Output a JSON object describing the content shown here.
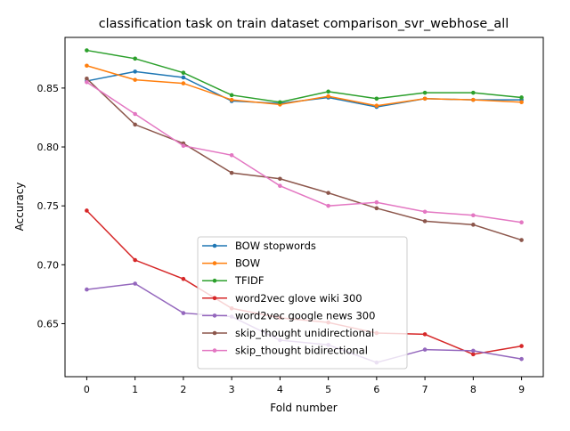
{
  "chart_data": {
    "type": "line",
    "title": "classification task on train dataset comparison_svr_webhose_all",
    "xlabel": "Fold number",
    "ylabel": "Accuracy",
    "x": [
      0,
      1,
      2,
      3,
      4,
      5,
      6,
      7,
      8,
      9
    ],
    "x_ticks": [
      "0",
      "1",
      "2",
      "3",
      "4",
      "5",
      "6",
      "7",
      "8",
      "9"
    ],
    "xlim": [
      -0.45,
      9.45
    ],
    "ylim": [
      0.605,
      0.893
    ],
    "y_ticks": [
      0.65,
      0.7,
      0.75,
      0.8,
      0.85
    ],
    "y_tick_labels": [
      "0.65",
      "0.70",
      "0.75",
      "0.80",
      "0.85"
    ],
    "grid": false,
    "legend_position": "lower-center",
    "series": [
      {
        "name": "BOW stopwords",
        "color": "#1f77b4",
        "values": [
          0.856,
          0.864,
          0.859,
          0.839,
          0.837,
          0.842,
          0.834,
          0.841,
          0.84,
          0.84
        ]
      },
      {
        "name": "BOW",
        "color": "#ff7f0e",
        "values": [
          0.869,
          0.857,
          0.854,
          0.84,
          0.836,
          0.843,
          0.835,
          0.841,
          0.84,
          0.838
        ]
      },
      {
        "name": "TFIDF",
        "color": "#2ca02c",
        "values": [
          0.882,
          0.875,
          0.863,
          0.844,
          0.838,
          0.847,
          0.841,
          0.846,
          0.846,
          0.842
        ]
      },
      {
        "name": "word2vec glove wiki 300",
        "color": "#d62728",
        "values": [
          0.746,
          0.704,
          0.688,
          0.663,
          0.655,
          0.651,
          0.642,
          0.641,
          0.624,
          0.631
        ]
      },
      {
        "name": "word2vec google news 300",
        "color": "#9467bd",
        "values": [
          0.679,
          0.684,
          0.659,
          0.656,
          0.636,
          0.632,
          0.617,
          0.628,
          0.627,
          0.62
        ]
      },
      {
        "name": "skip_thought unidirectional",
        "color": "#8c564b",
        "values": [
          0.858,
          0.819,
          0.803,
          0.778,
          0.773,
          0.761,
          0.748,
          0.737,
          0.734,
          0.721
        ]
      },
      {
        "name": "skip_thought bidirectional",
        "color": "#e377c2",
        "values": [
          0.855,
          0.828,
          0.801,
          0.793,
          0.767,
          0.75,
          0.753,
          0.745,
          0.742,
          0.736
        ]
      }
    ]
  }
}
